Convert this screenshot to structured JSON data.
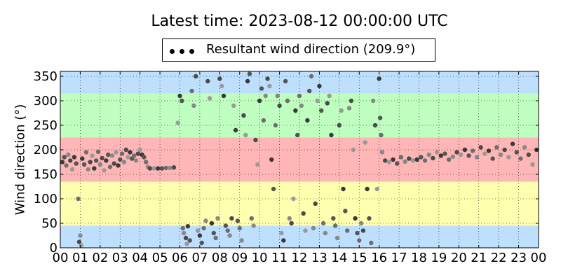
{
  "title": "Latest time: 2023-08-12 00:00:00 UTC",
  "legend": {
    "label": "Resultant wind direction (209.9°)"
  },
  "chart_data": {
    "type": "scatter",
    "title": "Latest time: 2023-08-12 00:00:00 UTC",
    "xlabel": "",
    "ylabel": "Wind direction (°)",
    "xlim": [
      0,
      24
    ],
    "ylim": [
      0,
      360
    ],
    "x_ticks": [
      "00",
      "01",
      "02",
      "03",
      "04",
      "05",
      "06",
      "07",
      "08",
      "09",
      "10",
      "11",
      "12",
      "13",
      "14",
      "15",
      "16",
      "17",
      "18",
      "19",
      "20",
      "21",
      "22",
      "23",
      "00"
    ],
    "y_ticks": [
      0,
      50,
      100,
      150,
      200,
      250,
      300,
      350
    ],
    "grid": true,
    "legend_position": "top-center",
    "bands": [
      {
        "from": 0,
        "to": 45,
        "color": "#bfdfff"
      },
      {
        "from": 45,
        "to": 135,
        "color": "#ffffb0"
      },
      {
        "from": 135,
        "to": 225,
        "color": "#ffb6b6"
      },
      {
        "from": 225,
        "to": 315,
        "color": "#bfffbf"
      },
      {
        "from": 315,
        "to": 360,
        "color": "#bfdfff"
      }
    ],
    "series": [
      {
        "name": "Resultant wind direction (209.9°)",
        "color": "#555555",
        "points": [
          [
            0.1,
            175
          ],
          [
            0.2,
            185
          ],
          [
            0.3,
            168
          ],
          [
            0.4,
            190
          ],
          [
            0.5,
            178
          ],
          [
            0.6,
            160
          ],
          [
            0.7,
            185
          ],
          [
            0.8,
            172
          ],
          [
            0.9,
            100
          ],
          [
            1.0,
            25
          ],
          [
            0.95,
            12
          ],
          [
            1.05,
            5
          ],
          [
            1.1,
            182
          ],
          [
            1.2,
            170
          ],
          [
            1.3,
            195
          ],
          [
            1.4,
            160
          ],
          [
            1.5,
            175
          ],
          [
            1.6,
            188
          ],
          [
            1.7,
            162
          ],
          [
            1.8,
            178
          ],
          [
            1.9,
            196
          ],
          [
            2.0,
            170
          ],
          [
            2.1,
            183
          ],
          [
            2.2,
            158
          ],
          [
            2.3,
            178
          ],
          [
            2.4,
            190
          ],
          [
            2.5,
            165
          ],
          [
            2.6,
            188
          ],
          [
            2.7,
            172
          ],
          [
            2.8,
            195
          ],
          [
            2.9,
            168
          ],
          [
            3.0,
            180
          ],
          [
            3.1,
            192
          ],
          [
            3.2,
            175
          ],
          [
            3.3,
            200
          ],
          [
            3.4,
            185
          ],
          [
            3.5,
            195
          ],
          [
            3.6,
            182
          ],
          [
            3.7,
            188
          ],
          [
            3.8,
            178
          ],
          [
            3.9,
            192
          ],
          [
            4.0,
            200
          ],
          [
            4.1,
            190
          ],
          [
            4.2,
            185
          ],
          [
            4.3,
            175
          ],
          [
            4.4,
            165
          ],
          [
            4.5,
            162
          ],
          [
            4.7,
            162
          ],
          [
            4.9,
            162
          ],
          [
            5.1,
            162
          ],
          [
            5.3,
            163
          ],
          [
            5.5,
            163
          ],
          [
            5.7,
            164
          ],
          [
            5.9,
            255
          ],
          [
            6.0,
            310
          ],
          [
            6.1,
            300
          ],
          [
            6.15,
            40
          ],
          [
            6.2,
            30
          ],
          [
            6.3,
            20
          ],
          [
            6.35,
            8
          ],
          [
            6.4,
            44
          ],
          [
            6.5,
            15
          ],
          [
            6.6,
            320
          ],
          [
            6.7,
            290
          ],
          [
            6.8,
            350
          ],
          [
            6.9,
            35
          ],
          [
            7.0,
            25
          ],
          [
            7.1,
            10
          ],
          [
            7.2,
            40
          ],
          [
            7.3,
            55
          ],
          [
            7.4,
            340
          ],
          [
            7.5,
            305
          ],
          [
            7.6,
            50
          ],
          [
            7.7,
            30
          ],
          [
            7.8,
            20
          ],
          [
            7.9,
            60
          ],
          [
            8.0,
            345
          ],
          [
            8.1,
            330
          ],
          [
            8.2,
            310
          ],
          [
            8.3,
            45
          ],
          [
            8.4,
            35
          ],
          [
            8.5,
            25
          ],
          [
            8.6,
            60
          ],
          [
            8.7,
            290
          ],
          [
            8.8,
            240
          ],
          [
            8.9,
            55
          ],
          [
            9.0,
            40
          ],
          [
            9.1,
            15
          ],
          [
            9.2,
            270
          ],
          [
            9.3,
            230
          ],
          [
            9.4,
            340
          ],
          [
            9.5,
            355
          ],
          [
            9.6,
            60
          ],
          [
            9.7,
            45
          ],
          [
            9.8,
            220
          ],
          [
            9.9,
            170
          ],
          [
            10.0,
            300
          ],
          [
            10.1,
            325
          ],
          [
            10.2,
            260
          ],
          [
            10.3,
            310
          ],
          [
            10.4,
            345
          ],
          [
            10.5,
            330
          ],
          [
            10.6,
            180
          ],
          [
            10.7,
            120
          ],
          [
            10.8,
            250
          ],
          [
            10.9,
            310
          ],
          [
            11.0,
            290
          ],
          [
            11.1,
            30
          ],
          [
            11.2,
            15
          ],
          [
            11.3,
            340
          ],
          [
            11.4,
            300
          ],
          [
            11.5,
            60
          ],
          [
            11.6,
            50
          ],
          [
            11.7,
            100
          ],
          [
            11.8,
            280
          ],
          [
            11.9,
            230
          ],
          [
            12.0,
            310
          ],
          [
            12.1,
            290
          ],
          [
            12.2,
            70
          ],
          [
            12.3,
            35
          ],
          [
            12.4,
            260
          ],
          [
            12.5,
            320
          ],
          [
            12.6,
            350
          ],
          [
            12.7,
            40
          ],
          [
            12.8,
            90
          ],
          [
            12.9,
            300
          ],
          [
            13.0,
            330
          ],
          [
            13.1,
            280
          ],
          [
            13.2,
            50
          ],
          [
            13.3,
            30
          ],
          [
            13.4,
            295
          ],
          [
            13.5,
            310
          ],
          [
            13.6,
            230
          ],
          [
            13.7,
            60
          ],
          [
            13.8,
            45
          ],
          [
            13.9,
            20
          ],
          [
            14.0,
            250
          ],
          [
            14.1,
            280
          ],
          [
            14.2,
            120
          ],
          [
            14.3,
            75
          ],
          [
            14.4,
            35
          ],
          [
            14.5,
            285
          ],
          [
            14.6,
            300
          ],
          [
            14.7,
            200
          ],
          [
            14.8,
            60
          ],
          [
            14.9,
            30
          ],
          [
            15.0,
            15
          ],
          [
            15.1,
            50
          ],
          [
            15.2,
            35
          ],
          [
            15.3,
            215
          ],
          [
            15.4,
            120
          ],
          [
            15.5,
            60
          ],
          [
            15.6,
            10
          ],
          [
            15.7,
            300
          ],
          [
            15.8,
            250
          ],
          [
            15.9,
            120
          ],
          [
            16.0,
            345
          ],
          [
            16.05,
            265
          ],
          [
            16.1,
            230
          ],
          [
            16.15,
            195
          ],
          [
            16.3,
            178
          ],
          [
            16.5,
            175
          ],
          [
            16.7,
            180
          ],
          [
            16.9,
            172
          ],
          [
            17.1,
            185
          ],
          [
            17.3,
            176
          ],
          [
            17.5,
            182
          ],
          [
            17.7,
            178
          ],
          [
            17.9,
            180
          ],
          [
            18.1,
            185
          ],
          [
            18.3,
            178
          ],
          [
            18.5,
            190
          ],
          [
            18.7,
            183
          ],
          [
            18.9,
            195
          ],
          [
            19.1,
            188
          ],
          [
            19.3,
            192
          ],
          [
            19.5,
            180
          ],
          [
            19.7,
            186
          ],
          [
            19.9,
            195
          ],
          [
            20.1,
            190
          ],
          [
            20.3,
            200
          ],
          [
            20.5,
            188
          ],
          [
            20.7,
            198
          ],
          [
            20.9,
            185
          ],
          [
            21.1,
            205
          ],
          [
            21.3,
            192
          ],
          [
            21.5,
            198
          ],
          [
            21.7,
            182
          ],
          [
            21.9,
            205
          ],
          [
            22.1,
            190
          ],
          [
            22.3,
            200
          ],
          [
            22.5,
            185
          ],
          [
            22.7,
            212
          ],
          [
            22.9,
            195
          ],
          [
            23.1,
            182
          ],
          [
            23.3,
            205
          ],
          [
            23.5,
            190
          ],
          [
            23.7,
            170
          ],
          [
            23.9,
            200
          ]
        ]
      }
    ]
  }
}
